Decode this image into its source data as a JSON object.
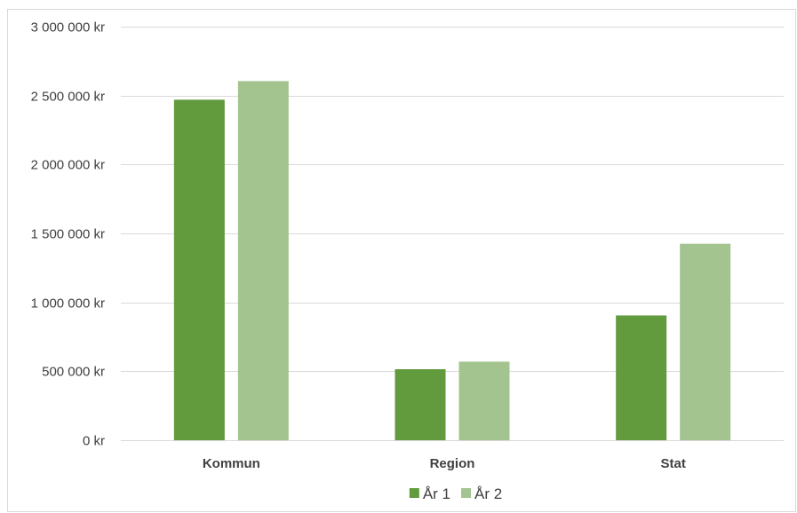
{
  "chart_data": {
    "type": "bar",
    "categories": [
      "Kommun",
      "Region",
      "Stat"
    ],
    "series": [
      {
        "name": "År 1",
        "values": [
          2470000,
          515000,
          905000
        ],
        "color": "#629a3e"
      },
      {
        "name": "År 2",
        "values": [
          2605000,
          570000,
          1425000
        ],
        "color": "#a3c48f"
      }
    ],
    "ylim": [
      0,
      3000000
    ],
    "yticks": [
      0,
      500000,
      1000000,
      1500000,
      2000000,
      2500000,
      3000000
    ],
    "ytick_labels": [
      "0 kr",
      "500 000 kr",
      "1 000 000 kr",
      "1 500 000 kr",
      "2 000 000 kr",
      "2 500 000 kr",
      "3 000 000 kr"
    ],
    "grid": true,
    "legend_position": "bottom",
    "gridline_color": "#d9d9d9"
  }
}
